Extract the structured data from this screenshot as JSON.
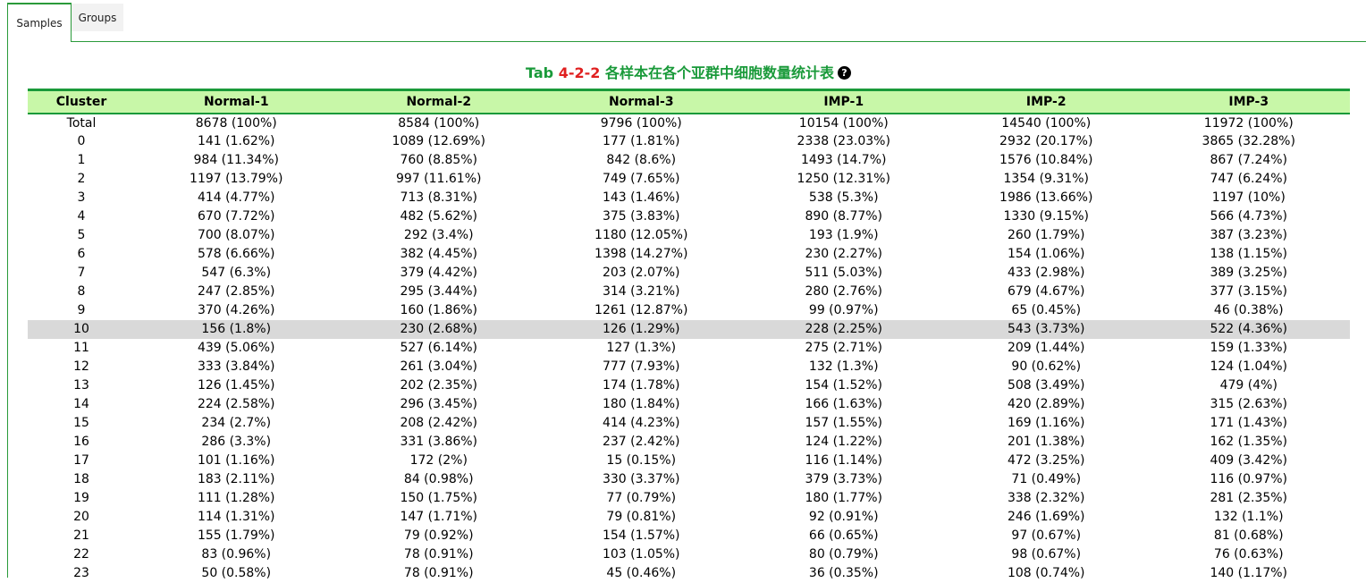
{
  "tabs": [
    {
      "label": "Samples",
      "active": true
    },
    {
      "label": "Groups",
      "active": false
    }
  ],
  "title": {
    "prefix": "Tab ",
    "number": "4-2-2",
    "text": " 各样本在各个亚群中细胞数量统计表",
    "help": "?"
  },
  "colors": {
    "accent": "#1a9a3a",
    "header_bg": "#c8f7a8",
    "title_number": "#e02020",
    "highlight_row": "#d9d9d9"
  },
  "table": {
    "headers": [
      "Cluster",
      "Normal-1",
      "Normal-2",
      "Normal-3",
      "IMP-1",
      "IMP-2",
      "IMP-3"
    ],
    "highlighted_row": 10,
    "rows": [
      [
        "Total",
        "8678 (100%)",
        "8584 (100%)",
        "9796 (100%)",
        "10154 (100%)",
        "14540 (100%)",
        "11972 (100%)"
      ],
      [
        "0",
        "141 (1.62%)",
        "1089 (12.69%)",
        "177 (1.81%)",
        "2338 (23.03%)",
        "2932 (20.17%)",
        "3865 (32.28%)"
      ],
      [
        "1",
        "984 (11.34%)",
        "760 (8.85%)",
        "842 (8.6%)",
        "1493 (14.7%)",
        "1576 (10.84%)",
        "867 (7.24%)"
      ],
      [
        "2",
        "1197 (13.79%)",
        "997 (11.61%)",
        "749 (7.65%)",
        "1250 (12.31%)",
        "1354 (9.31%)",
        "747 (6.24%)"
      ],
      [
        "3",
        "414 (4.77%)",
        "713 (8.31%)",
        "143 (1.46%)",
        "538 (5.3%)",
        "1986 (13.66%)",
        "1197 (10%)"
      ],
      [
        "4",
        "670 (7.72%)",
        "482 (5.62%)",
        "375 (3.83%)",
        "890 (8.77%)",
        "1330 (9.15%)",
        "566 (4.73%)"
      ],
      [
        "5",
        "700 (8.07%)",
        "292 (3.4%)",
        "1180 (12.05%)",
        "193 (1.9%)",
        "260 (1.79%)",
        "387 (3.23%)"
      ],
      [
        "6",
        "578 (6.66%)",
        "382 (4.45%)",
        "1398 (14.27%)",
        "230 (2.27%)",
        "154 (1.06%)",
        "138 (1.15%)"
      ],
      [
        "7",
        "547 (6.3%)",
        "379 (4.42%)",
        "203 (2.07%)",
        "511 (5.03%)",
        "433 (2.98%)",
        "389 (3.25%)"
      ],
      [
        "8",
        "247 (2.85%)",
        "295 (3.44%)",
        "314 (3.21%)",
        "280 (2.76%)",
        "679 (4.67%)",
        "377 (3.15%)"
      ],
      [
        "9",
        "370 (4.26%)",
        "160 (1.86%)",
        "1261 (12.87%)",
        "99 (0.97%)",
        "65 (0.45%)",
        "46 (0.38%)"
      ],
      [
        "10",
        "156 (1.8%)",
        "230 (2.68%)",
        "126 (1.29%)",
        "228 (2.25%)",
        "543 (3.73%)",
        "522 (4.36%)"
      ],
      [
        "11",
        "439 (5.06%)",
        "527 (6.14%)",
        "127 (1.3%)",
        "275 (2.71%)",
        "209 (1.44%)",
        "159 (1.33%)"
      ],
      [
        "12",
        "333 (3.84%)",
        "261 (3.04%)",
        "777 (7.93%)",
        "132 (1.3%)",
        "90 (0.62%)",
        "124 (1.04%)"
      ],
      [
        "13",
        "126 (1.45%)",
        "202 (2.35%)",
        "174 (1.78%)",
        "154 (1.52%)",
        "508 (3.49%)",
        "479 (4%)"
      ],
      [
        "14",
        "224 (2.58%)",
        "296 (3.45%)",
        "180 (1.84%)",
        "166 (1.63%)",
        "420 (2.89%)",
        "315 (2.63%)"
      ],
      [
        "15",
        "234 (2.7%)",
        "208 (2.42%)",
        "414 (4.23%)",
        "157 (1.55%)",
        "169 (1.16%)",
        "171 (1.43%)"
      ],
      [
        "16",
        "286 (3.3%)",
        "331 (3.86%)",
        "237 (2.42%)",
        "124 (1.22%)",
        "201 (1.38%)",
        "162 (1.35%)"
      ],
      [
        "17",
        "101 (1.16%)",
        "172 (2%)",
        "15 (0.15%)",
        "116 (1.14%)",
        "472 (3.25%)",
        "409 (3.42%)"
      ],
      [
        "18",
        "183 (2.11%)",
        "84 (0.98%)",
        "330 (3.37%)",
        "379 (3.73%)",
        "71 (0.49%)",
        "116 (0.97%)"
      ],
      [
        "19",
        "111 (1.28%)",
        "150 (1.75%)",
        "77 (0.79%)",
        "180 (1.77%)",
        "338 (2.32%)",
        "281 (2.35%)"
      ],
      [
        "20",
        "114 (1.31%)",
        "147 (1.71%)",
        "79 (0.81%)",
        "92 (0.91%)",
        "246 (1.69%)",
        "132 (1.1%)"
      ],
      [
        "21",
        "155 (1.79%)",
        "79 (0.92%)",
        "154 (1.57%)",
        "66 (0.65%)",
        "97 (0.67%)",
        "81 (0.68%)"
      ],
      [
        "22",
        "83 (0.96%)",
        "78 (0.91%)",
        "103 (1.05%)",
        "80 (0.79%)",
        "98 (0.67%)",
        "76 (0.63%)"
      ],
      [
        "23",
        "50 (0.58%)",
        "78 (0.91%)",
        "45 (0.46%)",
        "36 (0.35%)",
        "108 (0.74%)",
        "140 (1.17%)"
      ]
    ]
  }
}
